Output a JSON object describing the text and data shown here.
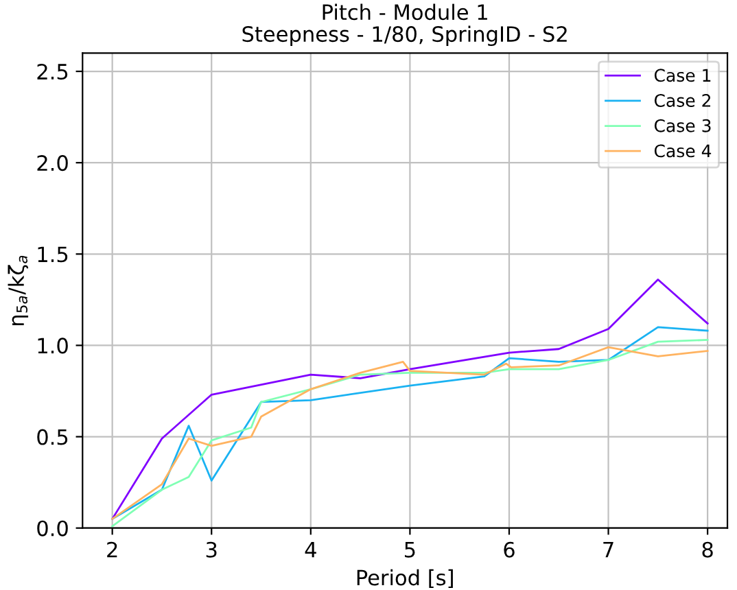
{
  "chart_data": {
    "type": "line",
    "title": "Pitch - Module 1\nSteepness - 1/80, SpringID - S2",
    "xlabel": "Period [s]",
    "ylabel": "η$_{5a}$/kζ$_{a}$",
    "xlim": [
      1.7,
      8.2
    ],
    "xticks": [
      2,
      3,
      4,
      5,
      6,
      7,
      8
    ],
    "ylim": [
      0,
      2.6
    ],
    "yticks": [
      {
        "value": 0,
        "label": "0.0"
      },
      0.5,
      {
        "value": 1,
        "label": "1.0"
      },
      1.5,
      {
        "value": 2,
        "label": "2.0"
      },
      2.5
    ],
    "grid": true,
    "legend": "top right",
    "series": [
      {
        "name": "Case 1",
        "color": "#8000ff",
        "x": [
          2,
          2.5,
          3,
          4,
          4.5,
          5,
          6,
          6.5,
          7,
          7.5,
          8
        ],
        "values": [
          0.05,
          0.49,
          0.73,
          0.84,
          0.82,
          0.87,
          0.96,
          0.98,
          1.09,
          1.36,
          1.12
        ]
      },
      {
        "name": "Case 2",
        "color": "#1ab2f2",
        "x": [
          2,
          2.5,
          2.77,
          3,
          3.5,
          4,
          5,
          5.75,
          6,
          6.5,
          7,
          7.5,
          8
        ],
        "values": [
          0.05,
          0.21,
          0.56,
          0.26,
          0.69,
          0.7,
          0.78,
          0.83,
          0.93,
          0.91,
          0.92,
          1.1,
          1.08
        ]
      },
      {
        "name": "Case 3",
        "color": "#80ffb4",
        "x": [
          2,
          2.5,
          2.77,
          3,
          3.4,
          3.5,
          4,
          4.5,
          5,
          5.75,
          6,
          6.5,
          7,
          7.5,
          8
        ],
        "values": [
          0.01,
          0.21,
          0.28,
          0.48,
          0.55,
          0.69,
          0.76,
          0.84,
          0.85,
          0.85,
          0.87,
          0.87,
          0.92,
          1.02,
          1.03
        ]
      },
      {
        "name": "Case 4",
        "color": "#ffb360",
        "x": [
          2,
          2.5,
          2.77,
          3,
          3.4,
          3.5,
          4,
          4.5,
          4.93,
          5,
          5.75,
          5.97,
          6.02,
          6.5,
          7,
          7.5,
          8
        ],
        "values": [
          0.05,
          0.24,
          0.49,
          0.45,
          0.5,
          0.61,
          0.76,
          0.85,
          0.91,
          0.86,
          0.84,
          0.9,
          0.88,
          0.89,
          0.99,
          0.94,
          0.97
        ]
      }
    ]
  }
}
